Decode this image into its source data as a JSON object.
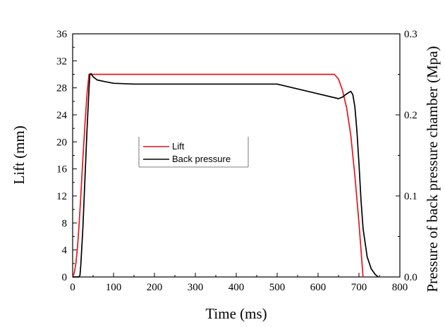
{
  "chart_data": {
    "type": "line",
    "title": "",
    "xlabel": "Time (ms)",
    "ylabel": "Lift (mm)",
    "y2label": "Pressure of back pressure chamber (Mpa)",
    "xlim": [
      0,
      800
    ],
    "ylim": [
      0,
      36
    ],
    "y2lim": [
      0,
      0.3
    ],
    "x_ticks": [
      "0",
      "100",
      "200",
      "300",
      "400",
      "500",
      "600",
      "700",
      "800"
    ],
    "y_ticks": [
      "0",
      "4",
      "8",
      "12",
      "16",
      "20",
      "24",
      "28",
      "32",
      "36"
    ],
    "y2_ticks": [
      "0.0",
      "0.1",
      "0.2",
      "0.3"
    ],
    "grid": false,
    "legend_position": "center-left",
    "series": [
      {
        "name": "Lift",
        "color": "#e8141c",
        "axis": "left",
        "x": [
          0,
          4,
          8,
          12,
          16,
          20,
          25,
          30,
          35,
          40,
          100,
          300,
          500,
          640,
          650,
          660,
          670,
          680,
          690,
          700,
          705,
          710
        ],
        "y": [
          0,
          0.6,
          2,
          4.5,
          8,
          12,
          17.5,
          22.5,
          27,
          30,
          30,
          30,
          30,
          30,
          29.3,
          27.6,
          25,
          21,
          15,
          8,
          4,
          0
        ]
      },
      {
        "name": "Back pressure",
        "color": "#000000",
        "axis": "right",
        "x": [
          0,
          15,
          18,
          20,
          25,
          30,
          35,
          40,
          42,
          45,
          50,
          60,
          80,
          100,
          150,
          200,
          300,
          400,
          500,
          550,
          600,
          650,
          660,
          670,
          680,
          685,
          690,
          695,
          700,
          705,
          710,
          720,
          730,
          740,
          747
        ],
        "y": [
          0,
          0,
          0.002,
          0.015,
          0.06,
          0.12,
          0.18,
          0.232,
          0.25,
          0.251,
          0.247,
          0.243,
          0.241,
          0.239,
          0.238,
          0.238,
          0.238,
          0.238,
          0.238,
          0.232,
          0.226,
          0.22,
          0.222,
          0.226,
          0.229,
          0.225,
          0.21,
          0.18,
          0.14,
          0.095,
          0.06,
          0.025,
          0.01,
          0.003,
          0
        ]
      }
    ]
  }
}
